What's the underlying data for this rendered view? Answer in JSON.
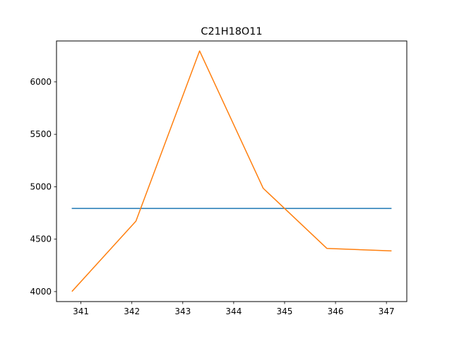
{
  "chart_data": {
    "type": "line",
    "title": "C21H18O11",
    "xlabel": "",
    "ylabel": "",
    "xlim": [
      340.52,
      347.4
    ],
    "ylim": [
      3905,
      6390
    ],
    "grid": false,
    "x_ticks": [
      341,
      342,
      343,
      344,
      345,
      346,
      347
    ],
    "y_ticks": [
      4000,
      4500,
      5000,
      5500,
      6000
    ],
    "series": [
      {
        "color": "#1f77b4",
        "x": [
          340.83,
          347.09
        ],
        "y": [
          4793,
          4793
        ]
      },
      {
        "color": "#ff7f0e",
        "x": [
          340.83,
          342.08,
          343.33,
          344.58,
          345.83,
          347.09
        ],
        "y": [
          4005,
          4672,
          6295,
          4985,
          4412,
          4388
        ]
      }
    ]
  }
}
